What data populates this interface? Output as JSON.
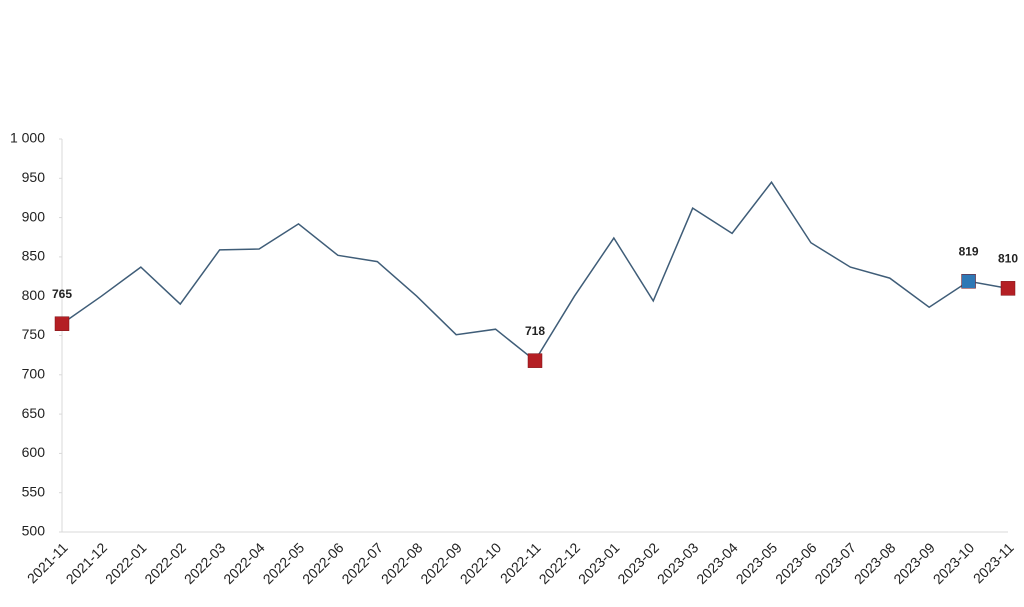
{
  "chart_data": {
    "type": "line",
    "categories": [
      "2021-11",
      "2021-12",
      "2022-01",
      "2022-02",
      "2022-03",
      "2022-04",
      "2022-05",
      "2022-06",
      "2022-07",
      "2022-08",
      "2022-09",
      "2022-10",
      "2022-11",
      "2022-12",
      "2023-01",
      "2023-02",
      "2023-03",
      "2023-04",
      "2023-05",
      "2023-06",
      "2023-07",
      "2023-08",
      "2023-09",
      "2023-10",
      "2023-11"
    ],
    "series": [
      {
        "color": "#3f5d78",
        "values": [
          765,
          800,
          837,
          790,
          859,
          860,
          892,
          852,
          844,
          800,
          751,
          758,
          718,
          800,
          874,
          794,
          912,
          880,
          945,
          868,
          837,
          823,
          786,
          819,
          810
        ],
        "marker_colors": [
          "#b41f24",
          null,
          null,
          null,
          null,
          null,
          null,
          null,
          null,
          null,
          null,
          null,
          "#b41f24",
          null,
          null,
          null,
          null,
          null,
          null,
          null,
          null,
          null,
          null,
          "#2f78b5",
          "#b41f24"
        ]
      }
    ],
    "ylim": [
      500,
      1000
    ],
    "yticks": [
      500,
      550,
      600,
      650,
      700,
      750,
      800,
      850,
      900,
      950,
      {
        "value": 1000,
        "label": "1 000"
      }
    ],
    "grid": false
  }
}
